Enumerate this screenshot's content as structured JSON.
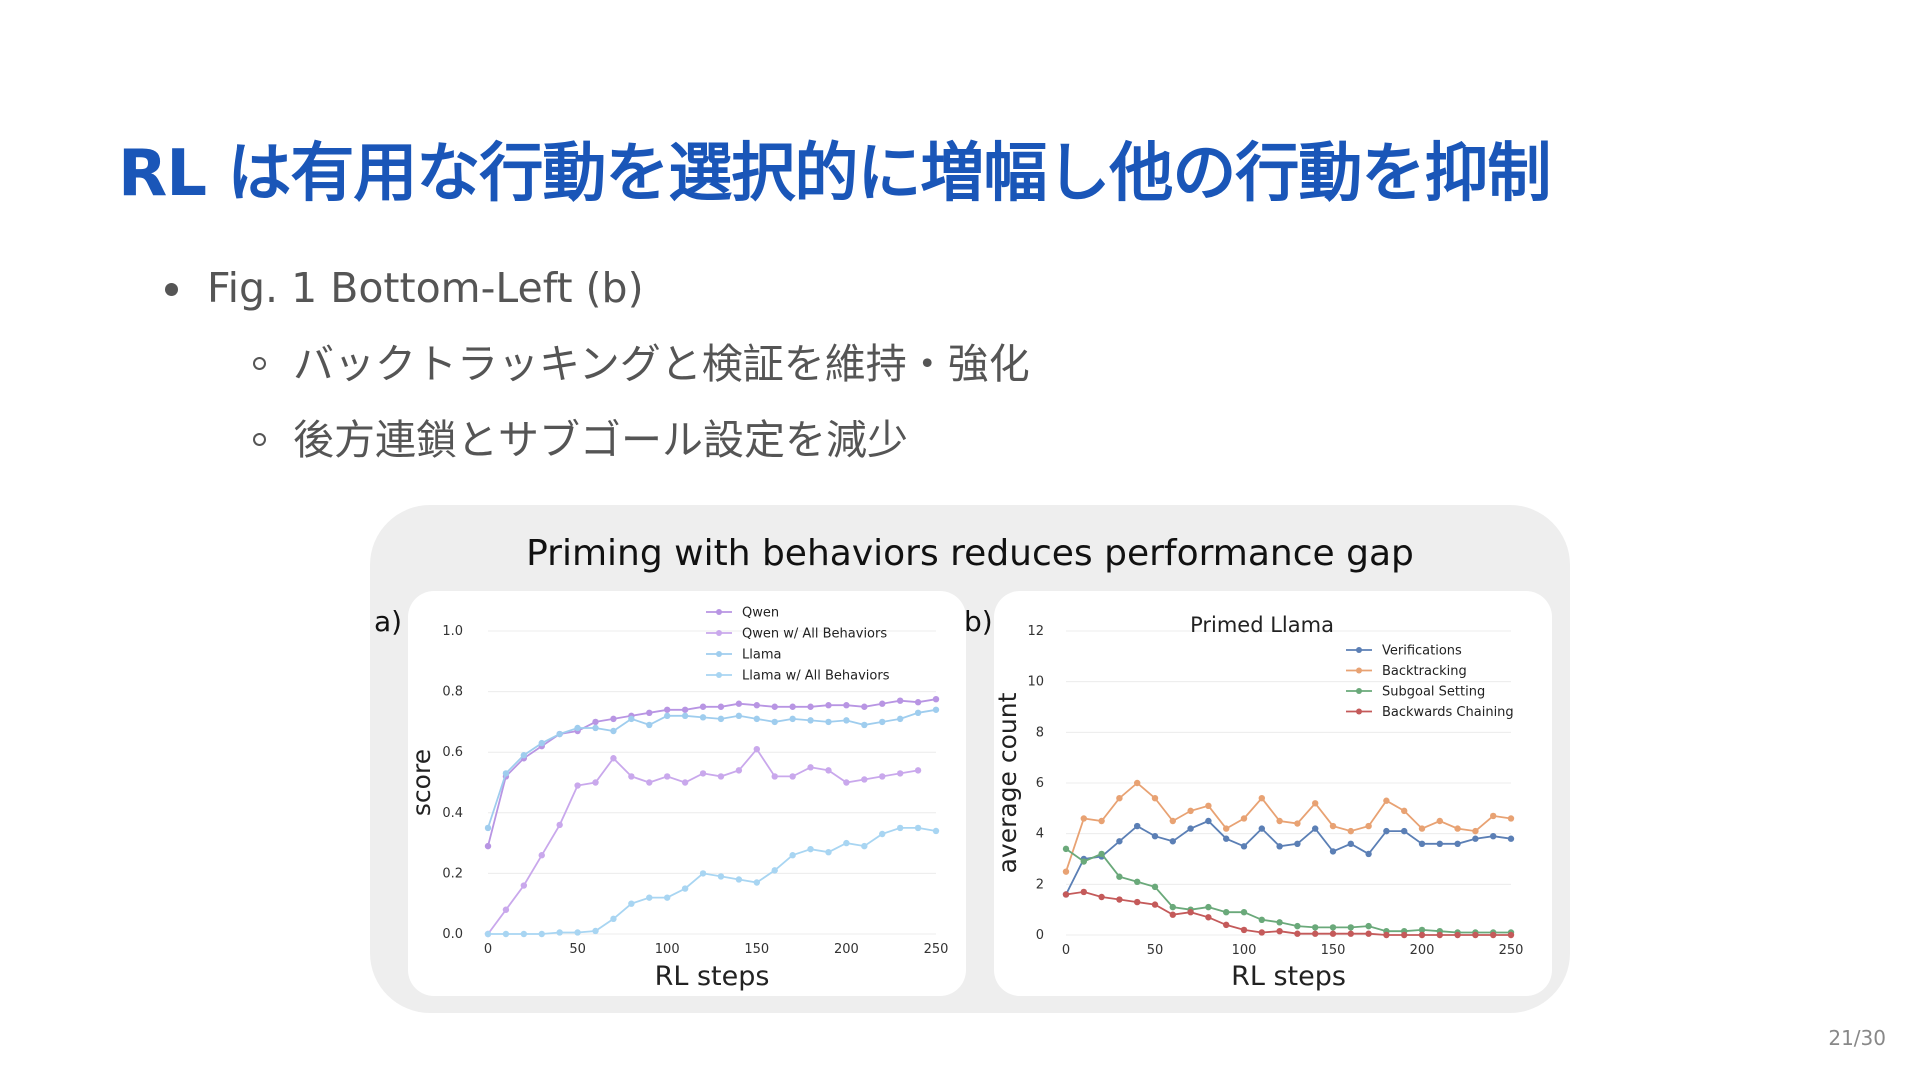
{
  "slide": {
    "title": "RL は有用な行動を選択的に増幅し他の行動を抑制",
    "bullet": "Fig. 1 Bottom-Left (b)",
    "sub_bullets": [
      "バックトラッキングと検証を維持・強化",
      "後方連鎖とサブゴール設定を減少"
    ],
    "page_number": "21/30"
  },
  "figure": {
    "title": "Priming with behaviors reduces performance gap",
    "panel_a_label": "a)",
    "panel_b_label": "b)"
  },
  "chart_data": [
    {
      "type": "line",
      "panel": "a",
      "title": "",
      "xlabel": "RL steps",
      "ylabel": "score",
      "xlim": [
        0,
        250
      ],
      "ylim": [
        0,
        1.0
      ],
      "xticks": [
        0,
        50,
        100,
        150,
        200,
        250
      ],
      "yticks": [
        0.0,
        0.2,
        0.4,
        0.6,
        0.8,
        1.0
      ],
      "ytick_labels": [
        "0.0",
        "0.2",
        "0.4",
        "0.6",
        "0.8",
        "1.0"
      ],
      "grid": true,
      "legend_position": "top-right",
      "x": [
        0,
        10,
        20,
        30,
        40,
        50,
        60,
        70,
        80,
        90,
        100,
        110,
        120,
        130,
        140,
        150,
        160,
        170,
        180,
        190,
        200,
        210,
        220,
        230,
        240,
        250
      ],
      "series": [
        {
          "name": "Qwen",
          "color": "#b895e3",
          "values": [
            0.29,
            0.52,
            0.58,
            0.62,
            0.66,
            0.67,
            0.7,
            0.71,
            0.72,
            0.73,
            0.74,
            0.74,
            0.75,
            0.75,
            0.76,
            0.755,
            0.75,
            0.75,
            0.75,
            0.755,
            0.755,
            0.75,
            0.76,
            0.77,
            0.765,
            0.775
          ]
        },
        {
          "name": "Qwen w/ All Behaviors",
          "color": "#c9a8ec",
          "values": [
            0.0,
            0.08,
            0.16,
            0.26,
            0.36,
            0.49,
            0.5,
            0.58,
            0.52,
            0.5,
            0.52,
            0.5,
            0.53,
            0.52,
            0.54,
            0.61,
            0.52,
            0.52,
            0.55,
            0.54,
            0.5,
            0.51,
            0.52,
            0.53,
            0.54,
            null
          ]
        },
        {
          "name": "Llama",
          "color": "#9fcdee",
          "values": [
            0.35,
            0.53,
            0.59,
            0.63,
            0.66,
            0.68,
            0.68,
            0.67,
            0.71,
            0.69,
            0.72,
            0.72,
            0.715,
            0.71,
            0.72,
            0.71,
            0.7,
            0.71,
            0.705,
            0.7,
            0.705,
            0.69,
            0.7,
            0.71,
            0.73,
            0.74
          ]
        },
        {
          "name": "Llama w/ All Behaviors",
          "color": "#a8d5f2",
          "values": [
            0.0,
            0.0,
            0.0,
            0.0,
            0.005,
            0.005,
            0.01,
            0.05,
            0.1,
            0.12,
            0.12,
            0.15,
            0.2,
            0.19,
            0.18,
            0.17,
            0.21,
            0.26,
            0.28,
            0.27,
            0.3,
            0.29,
            0.33,
            0.35,
            0.35,
            0.34
          ]
        }
      ]
    },
    {
      "type": "line",
      "panel": "b",
      "title": "Primed Llama",
      "xlabel": "RL steps",
      "ylabel": "average count",
      "xlim": [
        0,
        250
      ],
      "ylim": [
        0,
        12
      ],
      "xticks": [
        0,
        50,
        100,
        150,
        200,
        250
      ],
      "yticks": [
        0,
        2,
        4,
        6,
        8,
        10,
        12
      ],
      "ytick_labels": [
        "0",
        "2",
        "4",
        "6",
        "8",
        "10",
        "12"
      ],
      "grid": true,
      "legend_position": "top-right",
      "x": [
        0,
        10,
        20,
        30,
        40,
        50,
        60,
        70,
        80,
        90,
        100,
        110,
        120,
        130,
        140,
        150,
        160,
        170,
        180,
        190,
        200,
        210,
        220,
        230,
        240,
        250
      ],
      "series": [
        {
          "name": "Verifications",
          "color": "#5b7fb5",
          "values": [
            1.6,
            3.0,
            3.1,
            3.7,
            4.3,
            3.9,
            3.7,
            4.2,
            4.5,
            3.8,
            3.5,
            4.2,
            3.5,
            3.6,
            4.2,
            3.3,
            3.6,
            3.2,
            4.1,
            4.1,
            3.6,
            3.6,
            3.6,
            3.8,
            3.9,
            3.8
          ]
        },
        {
          "name": "Backtracking",
          "color": "#e8a273",
          "values": [
            2.5,
            4.6,
            4.5,
            5.4,
            6.0,
            5.4,
            4.5,
            4.9,
            5.1,
            4.2,
            4.6,
            5.4,
            4.5,
            4.4,
            5.2,
            4.3,
            4.1,
            4.3,
            5.3,
            4.9,
            4.2,
            4.5,
            4.2,
            4.1,
            4.7,
            4.6
          ]
        },
        {
          "name": "Subgoal Setting",
          "color": "#6aa97a",
          "values": [
            3.4,
            2.9,
            3.2,
            2.3,
            2.1,
            1.9,
            1.1,
            1.0,
            1.1,
            0.9,
            0.9,
            0.6,
            0.5,
            0.35,
            0.3,
            0.3,
            0.3,
            0.35,
            0.15,
            0.15,
            0.2,
            0.15,
            0.1,
            0.1,
            0.1,
            0.1
          ]
        },
        {
          "name": "Backwards Chaining",
          "color": "#c45a5a",
          "values": [
            1.6,
            1.7,
            1.5,
            1.4,
            1.3,
            1.2,
            0.8,
            0.9,
            0.7,
            0.4,
            0.2,
            0.1,
            0.15,
            0.05,
            0.05,
            0.05,
            0.05,
            0.05,
            0.0,
            0.0,
            0.0,
            0.0,
            0.0,
            0.0,
            0.0,
            0.0
          ]
        }
      ]
    }
  ]
}
